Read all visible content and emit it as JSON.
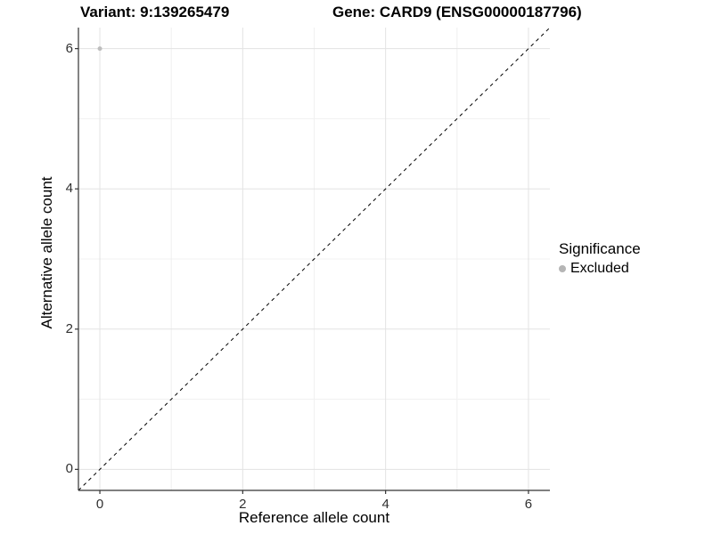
{
  "chart_data": {
    "type": "scatter",
    "title_left": "Variant: 9:139265479",
    "title_right": "Gene: CARD9 (ENSG00000187796)",
    "xlabel": "Reference allele count",
    "ylabel": "Alternative allele count",
    "xlim": [
      -0.3,
      6.3
    ],
    "ylim": [
      -0.3,
      6.3
    ],
    "x_ticks": [
      0,
      2,
      4,
      6
    ],
    "y_ticks": [
      0,
      2,
      4,
      6
    ],
    "x_minor_ticks": [
      1,
      3,
      5
    ],
    "y_minor_ticks": [
      1,
      3,
      5
    ],
    "grid": "major+minor",
    "identity_line": {
      "style": "dashed",
      "slope": 1,
      "intercept": 0
    },
    "series": [
      {
        "name": "Excluded",
        "color": "#bdbdbd",
        "marker": "circle",
        "points": [
          {
            "x": 0,
            "y": 6
          }
        ]
      }
    ],
    "legend": {
      "title": "Significance",
      "position": "right",
      "items": [
        {
          "label": "Excluded",
          "color": "#b5b5b5"
        }
      ]
    }
  },
  "colors": {
    "background": "#ffffff",
    "grid_major": "#e3e3e3",
    "grid_minor": "#f0f0f0",
    "axis_line": "#333333",
    "tick_mark": "#333333",
    "tick_label": "#303030",
    "identity_line": "#000000"
  }
}
